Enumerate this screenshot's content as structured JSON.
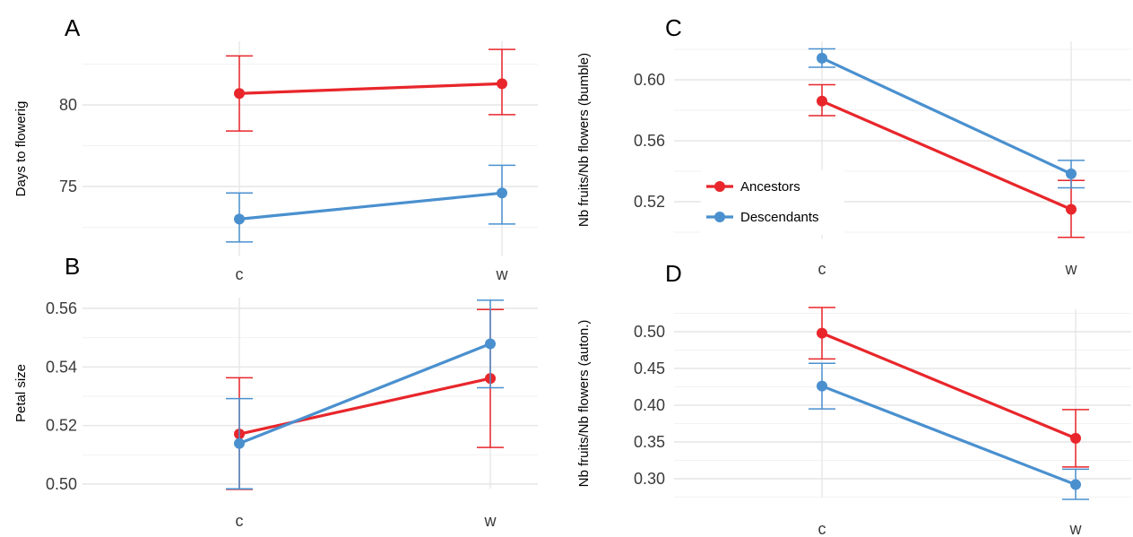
{
  "colors": {
    "ancestors": "#e8262b",
    "descendants": "#4a90cf"
  },
  "legend": {
    "position": "bottom-left of panel C",
    "entries": [
      "Ancestors",
      "Descendants"
    ]
  },
  "chart_data": [
    {
      "panel": "A",
      "type": "line",
      "ylabel": "Days to flowerig",
      "categories": [
        "c",
        "w"
      ],
      "ylim": [
        71.5,
        83.5
      ],
      "yticks": [
        75,
        80
      ],
      "ytick_labels": [
        "75",
        "80"
      ],
      "grid": true,
      "series": [
        {
          "name": "Ancestors",
          "values": [
            80.7,
            81.3
          ],
          "err_low": [
            78.4,
            79.4
          ],
          "err_high": [
            83.0,
            83.4
          ]
        },
        {
          "name": "Descendants",
          "values": [
            73.0,
            74.6
          ],
          "err_low": [
            71.6,
            72.7
          ],
          "err_high": [
            74.6,
            76.3
          ]
        }
      ]
    },
    {
      "panel": "B",
      "type": "line",
      "ylabel": "Petal size",
      "categories": [
        "c",
        "w"
      ],
      "ylim": [
        0.4975,
        0.5625
      ],
      "yticks": [
        0.5,
        0.52,
        0.54,
        0.56
      ],
      "ytick_labels": [
        "0.50",
        "0.52",
        "0.54",
        "0.56"
      ],
      "grid": true,
      "series": [
        {
          "name": "Ancestors",
          "values": [
            0.5171,
            0.5361
          ],
          "err_low": [
            0.4982,
            0.5125
          ],
          "err_high": [
            0.5363,
            0.5596
          ]
        },
        {
          "name": "Descendants",
          "values": [
            0.5139,
            0.5479
          ],
          "err_low": [
            0.4984,
            0.5329
          ],
          "err_high": [
            0.5292,
            0.5628
          ]
        }
      ]
    },
    {
      "panel": "C",
      "type": "line",
      "ylabel": "Nb fruits/Nb flowers (bumble)",
      "categories": [
        "c",
        "w"
      ],
      "ylim": [
        0.495,
        0.625
      ],
      "yticks": [
        0.52,
        0.56,
        0.6
      ],
      "ytick_labels": [
        "0.52",
        "0.56",
        "0.60"
      ],
      "grid": true,
      "series": [
        {
          "name": "Ancestors",
          "values": [
            0.586,
            0.515
          ],
          "err_low": [
            0.5765,
            0.4966
          ],
          "err_high": [
            0.5968,
            0.534
          ]
        },
        {
          "name": "Descendants",
          "values": [
            0.6142,
            0.5383
          ],
          "err_low": [
            0.6082,
            0.5291
          ],
          "err_high": [
            0.6203,
            0.5471
          ]
        }
      ]
    },
    {
      "panel": "D",
      "type": "line",
      "ylabel": "Nb fruits/Nb flowers (auton.)",
      "categories": [
        "c",
        "w"
      ],
      "ylim": [
        0.265,
        0.545
      ],
      "yticks": [
        0.3,
        0.35,
        0.4,
        0.45,
        0.5
      ],
      "ytick_labels": [
        "0.30",
        "0.35",
        "0.40",
        "0.45",
        "0.50"
      ],
      "grid": true,
      "series": [
        {
          "name": "Ancestors",
          "values": [
            0.498,
            0.355
          ],
          "err_low": [
            0.463,
            0.316
          ],
          "err_high": [
            0.533,
            0.394
          ]
        },
        {
          "name": "Descendants",
          "values": [
            0.426,
            0.292
          ],
          "err_low": [
            0.395,
            0.272
          ],
          "err_high": [
            0.457,
            0.313
          ]
        }
      ]
    }
  ]
}
